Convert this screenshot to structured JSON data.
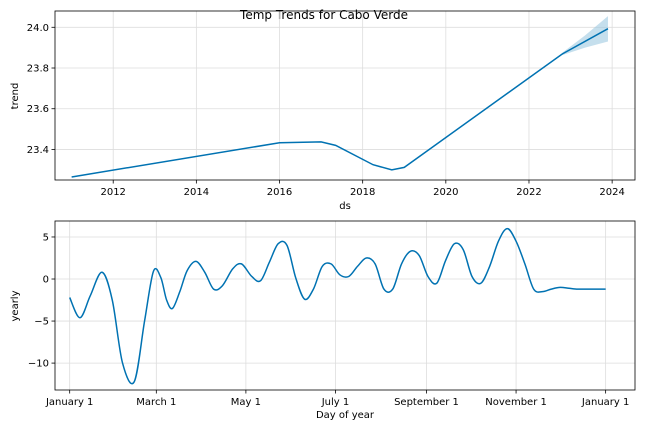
{
  "title": "Temp Trends for Cabo Verde",
  "colors": {
    "line": "#0072b2",
    "band": "#9ecae1",
    "grid": "#dddddd"
  },
  "chart_data": [
    {
      "type": "line",
      "name": "trend",
      "xlabel": "ds",
      "ylabel": "trend",
      "xlim": [
        2010.6,
        2024.55
      ],
      "ylim": [
        23.25,
        24.08
      ],
      "x_ticks": [
        2012,
        2014,
        2016,
        2018,
        2020,
        2022,
        2024
      ],
      "x_tick_labels": [
        "2012",
        "2014",
        "2016",
        "2018",
        "2020",
        "2022",
        "2024"
      ],
      "y_ticks": [
        23.4,
        23.6,
        23.8,
        24.0
      ],
      "y_tick_labels": [
        "23.4",
        "23.6",
        "23.8",
        "24.0"
      ],
      "grid": true,
      "series": [
        {
          "x": [
            2011.0,
            2016.0,
            2017.0,
            2017.35,
            2018.25,
            2018.7,
            2019.0,
            2022.8,
            2023.9
          ],
          "y": [
            23.265,
            23.433,
            23.437,
            23.42,
            23.325,
            23.3,
            23.312,
            23.869,
            23.993
          ]
        }
      ],
      "uncertainty_band": {
        "x": [
          2022.8,
          2023.35,
          2023.9
        ],
        "lower": [
          23.863,
          23.9,
          23.93
        ],
        "upper": [
          23.875,
          23.96,
          24.055
        ]
      }
    },
    {
      "type": "line",
      "name": "yearly",
      "xlabel": "Day of year",
      "ylabel": "yearly",
      "xlim": [
        -10,
        385
      ],
      "ylim": [
        -13.2,
        6.9
      ],
      "x_ticks": [
        0,
        59,
        120,
        181,
        243,
        304,
        365
      ],
      "x_tick_labels": [
        "January 1",
        "March 1",
        "May 1",
        "July 1",
        "September 1",
        "November 1",
        "January 1"
      ],
      "y_ticks": [
        -10,
        -5,
        0,
        5
      ],
      "y_tick_labels": [
        "−10",
        "−5",
        "0",
        "5"
      ],
      "grid": true,
      "series": [
        {
          "x": [
            0,
            7,
            14,
            22,
            29,
            36,
            44,
            51,
            57,
            62,
            66,
            70,
            75,
            80,
            86,
            92,
            98,
            104,
            111,
            117,
            124,
            130,
            136,
            142,
            148,
            154,
            160,
            166,
            172,
            178,
            184,
            190,
            196,
            202,
            208,
            214,
            220,
            226,
            232,
            238,
            244,
            250,
            256,
            262,
            268,
            274,
            280,
            286,
            292,
            298,
            304,
            310,
            316,
            322,
            328,
            334,
            340,
            346,
            352,
            358,
            365
          ],
          "y": [
            -2.2,
            -4.6,
            -2.0,
            0.8,
            -2.5,
            -10.0,
            -12.2,
            -5.0,
            0.9,
            0.2,
            -2.5,
            -3.5,
            -1.5,
            1.0,
            2.1,
            0.8,
            -1.2,
            -0.8,
            1.2,
            1.8,
            0.3,
            -0.2,
            2.0,
            4.2,
            4.0,
            0.1,
            -2.4,
            -1.2,
            1.5,
            1.8,
            0.5,
            0.3,
            1.5,
            2.5,
            1.8,
            -1.2,
            -1.2,
            1.8,
            3.3,
            2.8,
            0.3,
            -0.5,
            2.2,
            4.2,
            3.5,
            0.3,
            -0.5,
            1.5,
            4.5,
            6.0,
            4.5,
            1.8,
            -1.2,
            -1.5,
            -1.2,
            -1.0,
            -1.1,
            -1.2,
            -1.2,
            -1.2,
            -1.2
          ]
        }
      ]
    }
  ]
}
